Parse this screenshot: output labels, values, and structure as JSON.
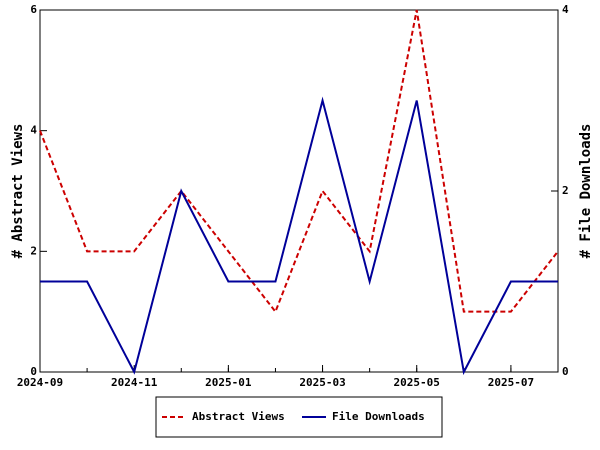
{
  "chart_data": {
    "type": "line",
    "x": [
      "2024-09",
      "2024-10",
      "2024-11",
      "2024-12",
      "2025-01",
      "2025-02",
      "2025-03",
      "2025-04",
      "2025-05",
      "2025-06",
      "2025-07",
      "2025-08"
    ],
    "xticks": [
      "2024-09",
      "2024-11",
      "2025-01",
      "2025-03",
      "2025-05",
      "2025-07"
    ],
    "ylabel": "# Abstract Views",
    "y2label": "# File Downloads",
    "ylim": [
      0,
      6
    ],
    "yticks": [
      0,
      2,
      4,
      6
    ],
    "y2lim": [
      0,
      4
    ],
    "y2ticks": [
      0,
      2,
      4
    ],
    "legend": "bottom",
    "series": [
      {
        "name": "Abstract Views",
        "color": "#cc0000",
        "dash": true,
        "values": [
          4,
          2,
          2,
          3,
          2,
          1,
          3,
          2,
          6,
          1,
          1,
          2
        ]
      },
      {
        "name": "File Downloads",
        "color": "#000099",
        "axis": "y2",
        "values": [
          1,
          1,
          0,
          2,
          1,
          1,
          3,
          1,
          3,
          0,
          1,
          1
        ]
      }
    ]
  }
}
